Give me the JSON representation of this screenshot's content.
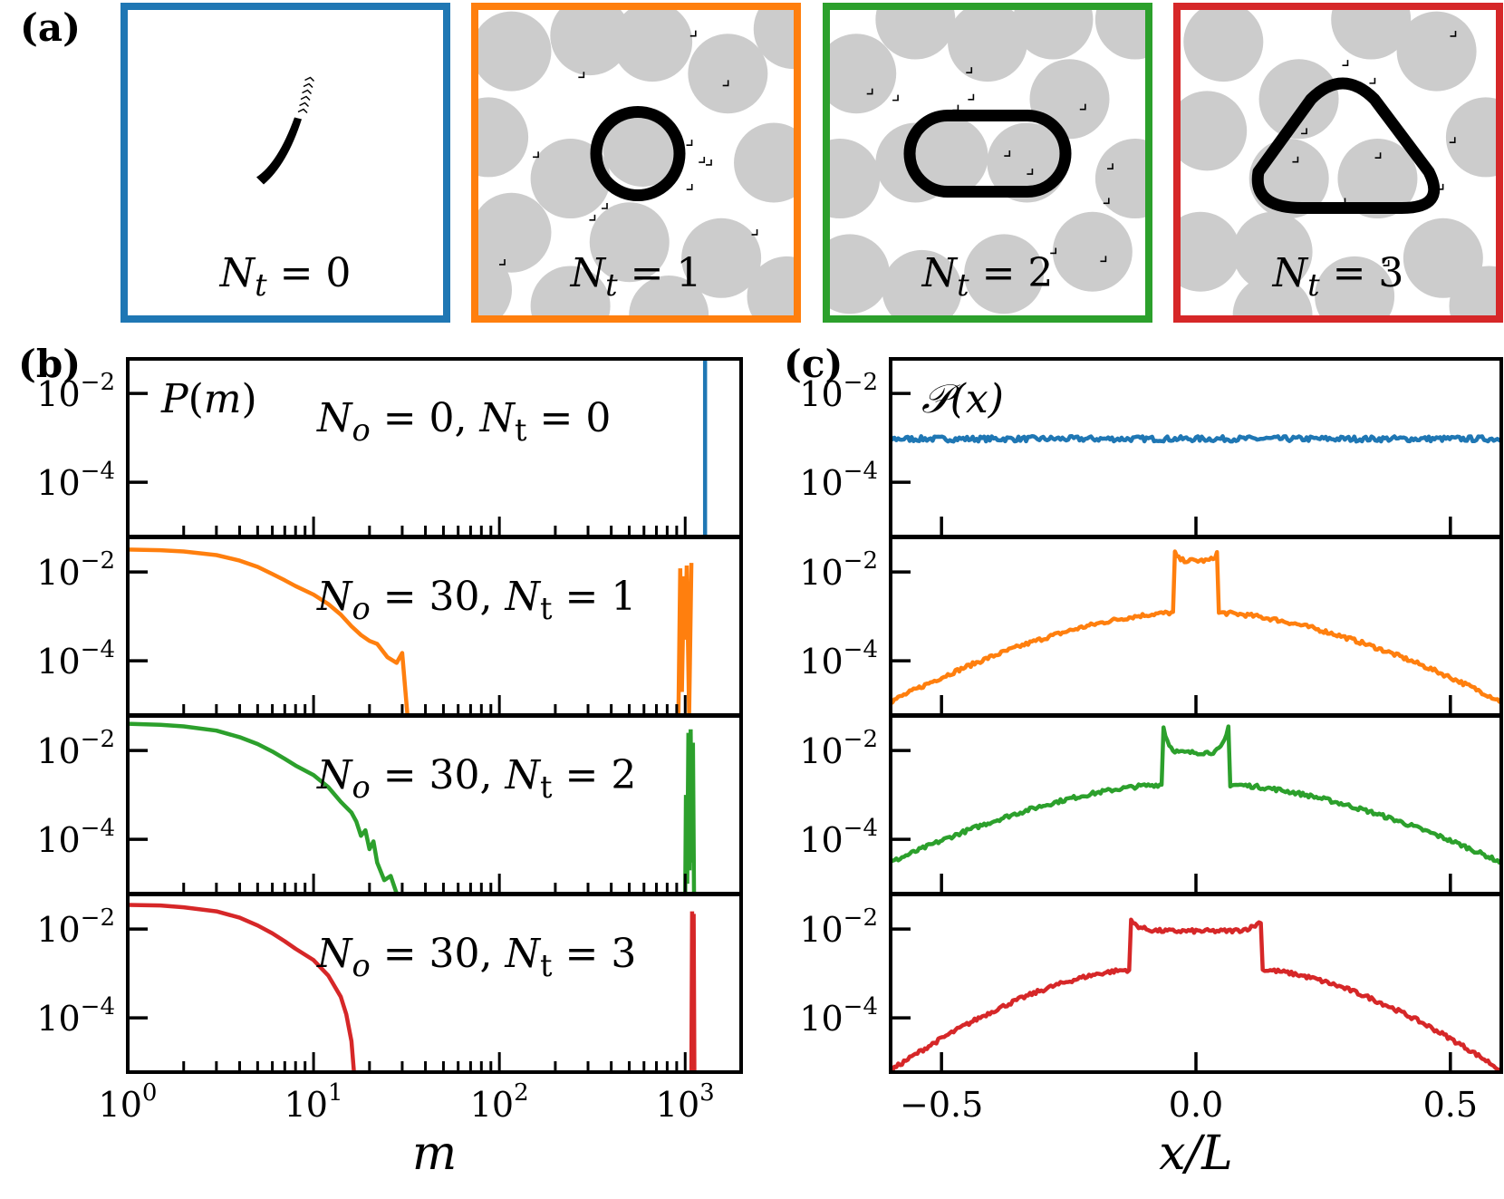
{
  "panel_labels": [
    "(a)",
    "(b)",
    "(c)"
  ],
  "colors": {
    "blue": "#1f77b4",
    "orange": "#ff7f0e",
    "green": "#2ca02c",
    "red": "#d62728",
    "obstacle": "#cccccc",
    "ring": "#000000"
  },
  "chart_data": [
    {
      "id": "a",
      "type": "other",
      "title": "(a)",
      "description_panels": [
        {
          "label": "N_t = 0",
          "Nt": 0,
          "color": "blue",
          "orbit": "none",
          "obstacles": false
        },
        {
          "label": "N_t = 1",
          "Nt": 1,
          "color": "orange",
          "orbit": "circle",
          "obstacles": true
        },
        {
          "label": "N_t = 2",
          "Nt": 2,
          "color": "green",
          "orbit": "stadium",
          "obstacles": true
        },
        {
          "label": "N_t = 3",
          "Nt": 3,
          "color": "red",
          "orbit": "triangle",
          "obstacles": true
        }
      ]
    },
    {
      "id": "b",
      "type": "line",
      "title": "(b)",
      "ylabel": "P(m)",
      "xlabel": "m",
      "xscale": "log",
      "yscale": "log",
      "xlim": [
        1,
        2000
      ],
      "ylim": [
        6e-06,
        0.06
      ],
      "xticks": [
        {
          "value": 1,
          "base": "10",
          "exp": "0"
        },
        {
          "value": 10,
          "base": "10",
          "exp": "1"
        },
        {
          "value": 100,
          "base": "10",
          "exp": "2"
        },
        {
          "value": 1000,
          "base": "10",
          "exp": "3"
        }
      ],
      "yticks": [
        {
          "value": 0.01,
          "base": "10",
          "exp": "−2"
        },
        {
          "value": 0.0001,
          "base": "10",
          "exp": "−4"
        }
      ],
      "series": [
        {
          "name": "N_o = 0, N_t = 0",
          "No": "0",
          "Nt": "0",
          "color": "blue",
          "values": [],
          "spike": {
            "m": [
              1280,
              1280
            ],
            "p": [
              6e-06,
              0.06
            ]
          }
        },
        {
          "name": "N_o = 30, N_t = 1",
          "No": "30",
          "Nt": "1",
          "color": "orange",
          "values": [
            [
              1,
              0.032
            ],
            [
              1.5,
              0.031
            ],
            [
              2,
              0.029
            ],
            [
              3,
              0.024
            ],
            [
              4,
              0.018
            ],
            [
              5,
              0.013
            ],
            [
              6,
              0.009
            ],
            [
              7,
              0.0065
            ],
            [
              8,
              0.0048
            ],
            [
              10,
              0.0031
            ],
            [
              12,
              0.0019
            ],
            [
              14,
              0.0011
            ],
            [
              16,
              0.0006
            ],
            [
              18,
              0.00038
            ],
            [
              20,
              0.00028
            ],
            [
              22,
              0.00024
            ],
            [
              25,
              0.00012
            ],
            [
              28,
              9e-05
            ],
            [
              30,
              0.00015
            ],
            [
              32,
              6e-06
            ]
          ],
          "spike": {
            "m": [
              920,
              940,
              960,
              985,
              1000,
              1020,
              1050,
              1080
            ],
            "p": [
              6e-06,
              0.012,
              2e-05,
              0.008,
              0.0003,
              0.014,
              6e-06,
              0.016
            ]
          }
        },
        {
          "name": "N_o = 30, N_t = 2",
          "No": "30",
          "Nt": "2",
          "color": "green",
          "values": [
            [
              1,
              0.04
            ],
            [
              1.5,
              0.038
            ],
            [
              2,
              0.035
            ],
            [
              3,
              0.028
            ],
            [
              4,
              0.02
            ],
            [
              5,
              0.014
            ],
            [
              6,
              0.0095
            ],
            [
              7,
              0.0065
            ],
            [
              8,
              0.0046
            ],
            [
              10,
              0.0028
            ],
            [
              12,
              0.0015
            ],
            [
              14,
              0.0007
            ],
            [
              16,
              0.0004
            ],
            [
              17,
              0.00025
            ],
            [
              18,
              0.00012
            ],
            [
              19,
              0.00016
            ],
            [
              20,
              6e-05
            ],
            [
              21,
              9e-05
            ],
            [
              22,
              3e-05
            ],
            [
              24,
              1.2e-05
            ],
            [
              26,
              1.5e-05
            ],
            [
              28,
              6e-06
            ]
          ],
          "spike": {
            "m": [
              1000,
              1010,
              1025,
              1040,
              1055,
              1070,
              1085,
              1100,
              1115
            ],
            "p": [
              6e-06,
              0.001,
              1e-05,
              0.025,
              2e-05,
              0.03,
              3e-05,
              0.015,
              6e-06
            ]
          }
        },
        {
          "name": "N_o = 30, N_t = 3",
          "No": "30",
          "Nt": "3",
          "color": "red",
          "values": [
            [
              1,
              0.035
            ],
            [
              1.5,
              0.034
            ],
            [
              2,
              0.031
            ],
            [
              3,
              0.025
            ],
            [
              4,
              0.018
            ],
            [
              5,
              0.012
            ],
            [
              6,
              0.008
            ],
            [
              7,
              0.0053
            ],
            [
              8,
              0.0036
            ],
            [
              10,
              0.002
            ],
            [
              12,
              0.0009
            ],
            [
              14,
              0.0003
            ],
            [
              15,
              0.00012
            ],
            [
              16,
              3e-05
            ],
            [
              16.5,
              6e-06
            ]
          ],
          "spike": {
            "m": [
              1080,
              1090,
              1100,
              1110,
              1120
            ],
            "p": [
              6e-06,
              0.025,
              6e-06,
              0.022,
              6e-06
            ]
          }
        }
      ],
      "annotations": [
        {
          "text": "P(m)",
          "position": "top-left"
        }
      ]
    },
    {
      "id": "c",
      "type": "line",
      "title": "(c)",
      "ylabel": "𝒫(x)",
      "xlabel": "x/L",
      "xscale": "linear",
      "yscale": "log",
      "xlim": [
        -0.6,
        0.6
      ],
      "ylim": [
        6e-06,
        0.06
      ],
      "xticks": [
        {
          "value": -0.5,
          "label": "−0.5"
        },
        {
          "value": 0.0,
          "label": "0.0"
        },
        {
          "value": 0.5,
          "label": "0.5"
        }
      ],
      "yticks": [
        {
          "value": 0.01,
          "base": "10",
          "exp": "−2"
        },
        {
          "value": 0.0001,
          "base": "10",
          "exp": "−4"
        }
      ],
      "series": [
        {
          "name": "N_t = 0",
          "color": "blue",
          "shape": "flat",
          "level": 0.00095
        },
        {
          "name": "N_t = 1",
          "color": "orange",
          "shape": "peak",
          "edge": 1.2e-05,
          "shoulder": 0.0012,
          "inner": 0.035,
          "innerDip": 0.018,
          "halfWidth": 0.045
        },
        {
          "name": "N_t = 2",
          "color": "green",
          "shape": "peak",
          "edge": 3e-05,
          "shoulder": 0.0017,
          "inner": 0.04,
          "innerDip": 0.009,
          "halfWidth": 0.065
        },
        {
          "name": "N_t = 3",
          "color": "red",
          "shape": "peak",
          "edge": 6.5e-06,
          "shoulder": 0.0012,
          "inner": 0.016,
          "innerDip": 0.009,
          "halfWidth": 0.13
        }
      ],
      "annotations": [
        {
          "text": "𝒫(x)",
          "position": "top-left"
        }
      ]
    }
  ]
}
